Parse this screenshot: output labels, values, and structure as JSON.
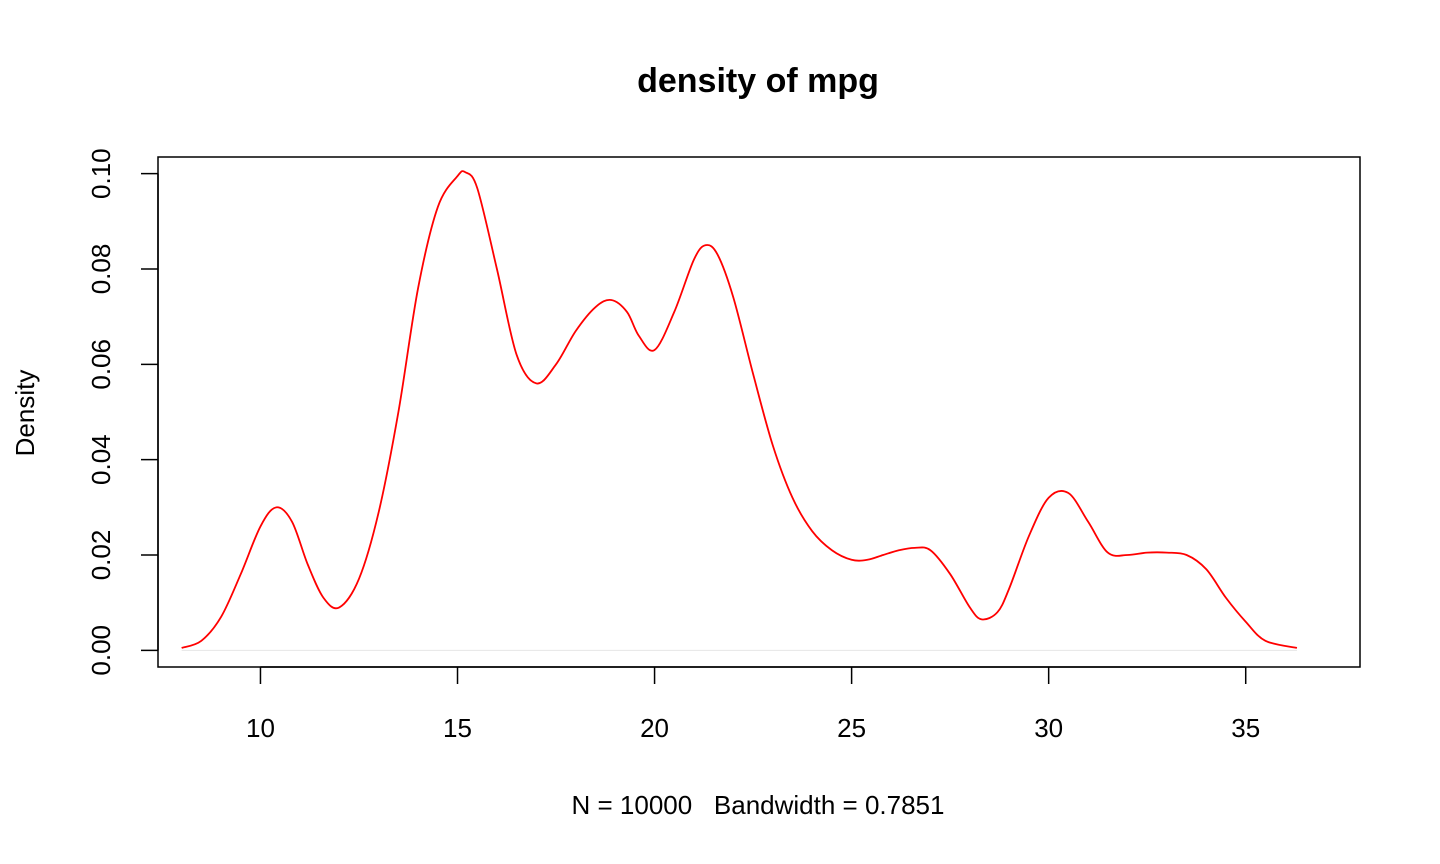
{
  "chart_data": {
    "type": "line",
    "title": "density of mpg",
    "xlabel": "N = 10000   Bandwidth = 0.7851",
    "ylabel": "Density",
    "xlim": [
      7.4,
      37.9
    ],
    "ylim": [
      -0.0035,
      0.1035
    ],
    "x_ticks": [
      10,
      15,
      20,
      25,
      30,
      35
    ],
    "x_tick_labels": [
      "10",
      "15",
      "20",
      "25",
      "30",
      "35"
    ],
    "y_ticks": [
      0.0,
      0.02,
      0.04,
      0.06,
      0.08,
      0.1
    ],
    "y_tick_labels": [
      "0.00",
      "0.02",
      "0.04",
      "0.06",
      "0.08",
      "0.10"
    ],
    "grid": false,
    "line_color": "#ff0000",
    "zero_line_color": "#e6e6e6",
    "series": [
      {
        "x": [
          8.0,
          8.5,
          9.0,
          9.5,
          10.0,
          10.4,
          10.8,
          11.2,
          11.6,
          12.0,
          12.5,
          13.0,
          13.5,
          14.0,
          14.5,
          15.0,
          15.2,
          15.5,
          16.0,
          16.5,
          17.0,
          17.5,
          18.0,
          18.5,
          18.9,
          19.3,
          19.6,
          20.0,
          20.5,
          21.0,
          21.3,
          21.6,
          22.0,
          22.5,
          23.0,
          23.5,
          24.0,
          24.5,
          25.0,
          25.4,
          25.8,
          26.2,
          26.6,
          27.0,
          27.5,
          28.0,
          28.3,
          28.7,
          29.0,
          29.5,
          30.0,
          30.5,
          31.0,
          31.5,
          32.0,
          32.5,
          33.0,
          33.5,
          34.0,
          34.5,
          35.0,
          35.5,
          36.3
        ],
        "y": [
          0.0005,
          0.002,
          0.007,
          0.016,
          0.026,
          0.03,
          0.027,
          0.018,
          0.011,
          0.009,
          0.015,
          0.029,
          0.05,
          0.076,
          0.093,
          0.0995,
          0.1003,
          0.097,
          0.08,
          0.062,
          0.056,
          0.06,
          0.067,
          0.072,
          0.0735,
          0.071,
          0.066,
          0.063,
          0.071,
          0.082,
          0.085,
          0.083,
          0.074,
          0.058,
          0.043,
          0.032,
          0.025,
          0.021,
          0.019,
          0.019,
          0.02,
          0.021,
          0.0215,
          0.021,
          0.016,
          0.009,
          0.0065,
          0.008,
          0.013,
          0.024,
          0.032,
          0.033,
          0.027,
          0.0205,
          0.02,
          0.0205,
          0.0205,
          0.02,
          0.017,
          0.011,
          0.006,
          0.002,
          0.0005
        ]
      }
    ]
  }
}
